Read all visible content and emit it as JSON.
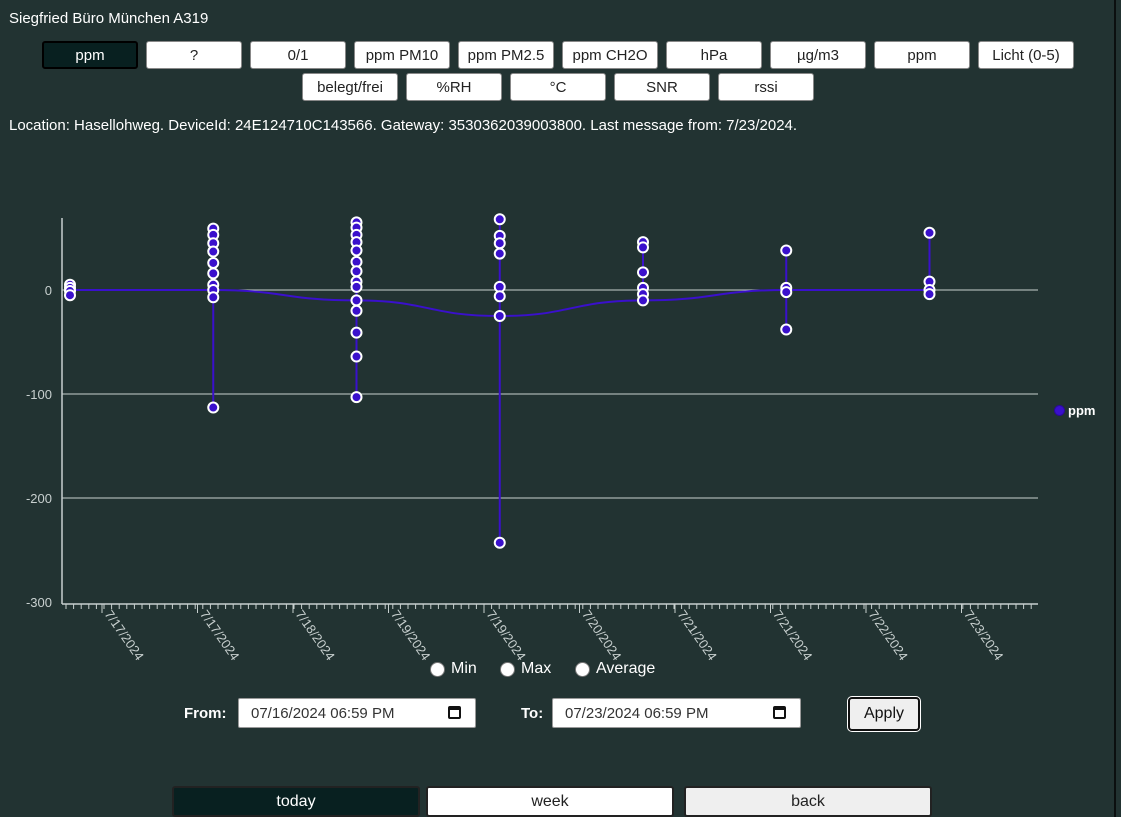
{
  "title": "Siegfried Büro München A319",
  "units_row1": [
    "ppm",
    "?",
    "0/1",
    "ppm PM10",
    "ppm PM2.5",
    "ppm CH2O",
    "hPa",
    "µg/m3",
    "ppm",
    "Licht (0-5)"
  ],
  "units_row2": [
    "belegt/frei",
    "%RH",
    "°C",
    "SNR",
    "rssi"
  ],
  "info": "Location: Hasellohweg. DeviceId: 24E124710C143566. Gateway: 3530362039003800. Last message from: 7/23/2024.",
  "radios": {
    "min": "Min",
    "max": "Max",
    "average": "Average"
  },
  "date_range": {
    "from_label": "From:",
    "from_value": "07/16/2024 06:59 PM",
    "to_label": "To:",
    "to_value": "07/23/2024 06:59 PM",
    "apply_label": "Apply"
  },
  "nav": {
    "today": "today",
    "week": "week",
    "back": "back"
  },
  "colors": {
    "background": "#223332",
    "series": "#3a10cc",
    "active_button": "#082020"
  },
  "chart_data": {
    "type": "line",
    "series": [
      {
        "name": "ppm",
        "color": "#3a10cc",
        "clusters": [
          {
            "x": 0.0,
            "avg": 0,
            "values": [
              5,
              2,
              -1,
              -5
            ]
          },
          {
            "x": 1.5,
            "avg": 0,
            "values": [
              59,
              53,
              45,
              37,
              26,
              16,
              5,
              0,
              -7,
              -113
            ]
          },
          {
            "x": 3.0,
            "avg": -10,
            "values": [
              65,
              60,
              53,
              46,
              38,
              27,
              18,
              8,
              3,
              -10,
              -20,
              -41,
              -64,
              -103
            ]
          },
          {
            "x": 4.5,
            "avg": -25,
            "values": [
              68,
              52,
              45,
              35,
              3,
              -6,
              -25,
              -243
            ]
          },
          {
            "x": 6.0,
            "avg": -10,
            "values": [
              46,
              41,
              17,
              2,
              -4,
              -10
            ]
          },
          {
            "x": 7.5,
            "avg": 0,
            "values": [
              38,
              2,
              -2,
              -38
            ]
          },
          {
            "x": 9.0,
            "avg": 0,
            "values": [
              55,
              8,
              0,
              -4
            ]
          }
        ]
      }
    ],
    "y_ticks": [
      "0",
      "-100",
      "-200",
      "-300"
    ],
    "x_tick_labels": [
      "7/17/2024",
      "7/17/2024",
      "7/18/2024",
      "7/19/2024",
      "7/19/2024",
      "7/20/2024",
      "7/21/2024",
      "7/21/2024",
      "7/22/2024",
      "7/23/2024"
    ],
    "ylim": [
      -300,
      68
    ],
    "legend": "ppm",
    "legend_position": "right"
  }
}
